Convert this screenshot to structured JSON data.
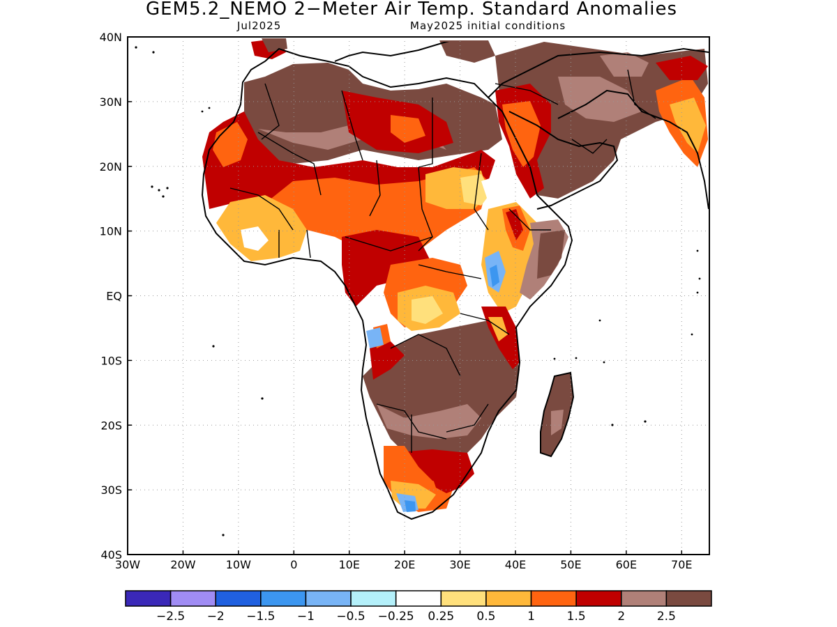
{
  "title": "GEM5.2_NEMO 2−Meter Air Temp. Standard Anomalies",
  "subtitle_left": "Jul2025",
  "subtitle_right": "May2025 initial conditions",
  "map": {
    "lon_range": [
      -30,
      75
    ],
    "lat_range": [
      -40,
      40
    ],
    "grid": true,
    "lon_ticks": [
      {
        "value": -30,
        "label": "30W"
      },
      {
        "value": -20,
        "label": "20W"
      },
      {
        "value": -10,
        "label": "10W"
      },
      {
        "value": 0,
        "label": "0"
      },
      {
        "value": 10,
        "label": "10E"
      },
      {
        "value": 20,
        "label": "20E"
      },
      {
        "value": 30,
        "label": "30E"
      },
      {
        "value": 40,
        "label": "40E"
      },
      {
        "value": 50,
        "label": "50E"
      },
      {
        "value": 60,
        "label": "60E"
      },
      {
        "value": 70,
        "label": "70E"
      }
    ],
    "lat_ticks": [
      {
        "value": 40,
        "label": "40N"
      },
      {
        "value": 30,
        "label": "30N"
      },
      {
        "value": 20,
        "label": "20N"
      },
      {
        "value": 10,
        "label": "10N"
      },
      {
        "value": 0,
        "label": "EQ"
      },
      {
        "value": -10,
        "label": "10S"
      },
      {
        "value": -20,
        "label": "20S"
      },
      {
        "value": -30,
        "label": "30S"
      },
      {
        "value": -40,
        "label": "40S"
      }
    ]
  },
  "colorbar": {
    "colors": [
      "#3a28b8",
      "#a08cf4",
      "#2060e0",
      "#3c96f0",
      "#78b4f6",
      "#b4f0fa",
      "#ffffff",
      "#ffe07c",
      "#ffb83a",
      "#ff6410",
      "#c00000",
      "#b08078",
      "#7a4a40"
    ],
    "labels": [
      "−2.5",
      "−2",
      "−1.5",
      "−1",
      "−0.5",
      "−0.25",
      "0.25",
      "0.5",
      "1",
      "1.5",
      "2",
      "2.5"
    ]
  }
}
